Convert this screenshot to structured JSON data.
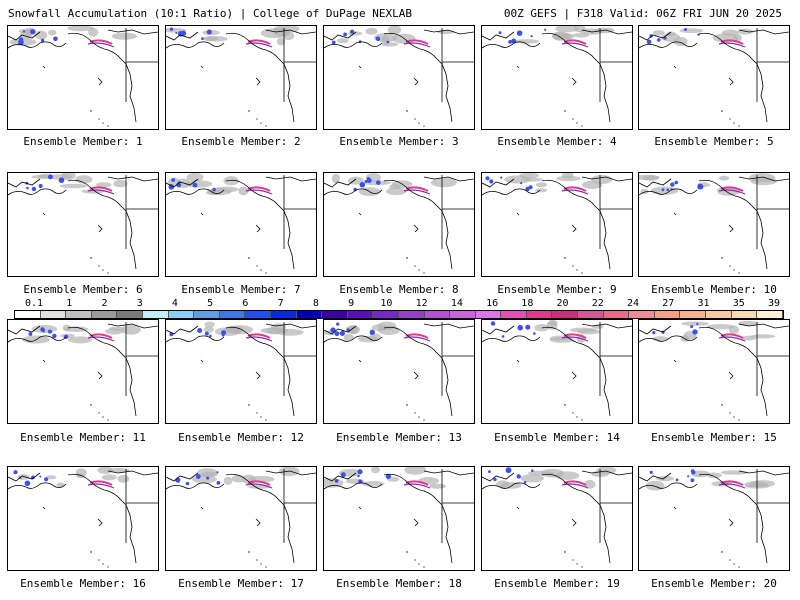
{
  "header": {
    "title_left": "Snowfall Accumulation (10:1 Ratio) | College of DuPage NEXLAB",
    "title_right": "00Z GEFS | F318 Valid: 06Z FRI JUN 20 2025"
  },
  "panels": [
    {
      "label": "Ensemble Member: 1"
    },
    {
      "label": "Ensemble Member: 2"
    },
    {
      "label": "Ensemble Member: 3"
    },
    {
      "label": "Ensemble Member: 4"
    },
    {
      "label": "Ensemble Member: 5"
    },
    {
      "label": "Ensemble Member: 6"
    },
    {
      "label": "Ensemble Member: 7"
    },
    {
      "label": "Ensemble Member: 8"
    },
    {
      "label": "Ensemble Member: 9"
    },
    {
      "label": "Ensemble Member: 10"
    },
    {
      "label": "Ensemble Member: 11"
    },
    {
      "label": "Ensemble Member: 12"
    },
    {
      "label": "Ensemble Member: 13"
    },
    {
      "label": "Ensemble Member: 14"
    },
    {
      "label": "Ensemble Member: 15"
    },
    {
      "label": "Ensemble Member: 16"
    },
    {
      "label": "Ensemble Member: 17"
    },
    {
      "label": "Ensemble Member: 18"
    },
    {
      "label": "Ensemble Member: 19"
    },
    {
      "label": "Ensemble Member: 20"
    }
  ],
  "colorbar": {
    "tick_labels": [
      "0.1",
      "1",
      "2",
      "3",
      "4",
      "5",
      "6",
      "7",
      "8",
      "9",
      "10",
      "12",
      "14",
      "16",
      "18",
      "20",
      "22",
      "24",
      "27",
      "31",
      "35",
      "39"
    ],
    "colors": [
      "#ffffff",
      "#e0e0e0",
      "#c0c0c0",
      "#9a9a9a",
      "#7a7a7a",
      "#bfefff",
      "#87cefa",
      "#5f9ee0",
      "#3c78e6",
      "#1e50f0",
      "#0a28dc",
      "#0000b4",
      "#3c00a0",
      "#5a10b4",
      "#7828c8",
      "#9640c8",
      "#b450d2",
      "#c864dc",
      "#dc78e6",
      "#e650b4",
      "#dc3c8c",
      "#c83278",
      "#d25a96",
      "#e66e8c",
      "#f08c96",
      "#f5a082",
      "#f5b48c",
      "#f8c8a0",
      "#fadcb4",
      "#fcf0d2"
    ]
  },
  "map_colors": {
    "snow_gray": "#b4b4b4",
    "snow_blue": "#3c50f0",
    "snow_purple": "#8c28b4",
    "snow_pink": "#dc3c8c",
    "outline": "#000000"
  }
}
